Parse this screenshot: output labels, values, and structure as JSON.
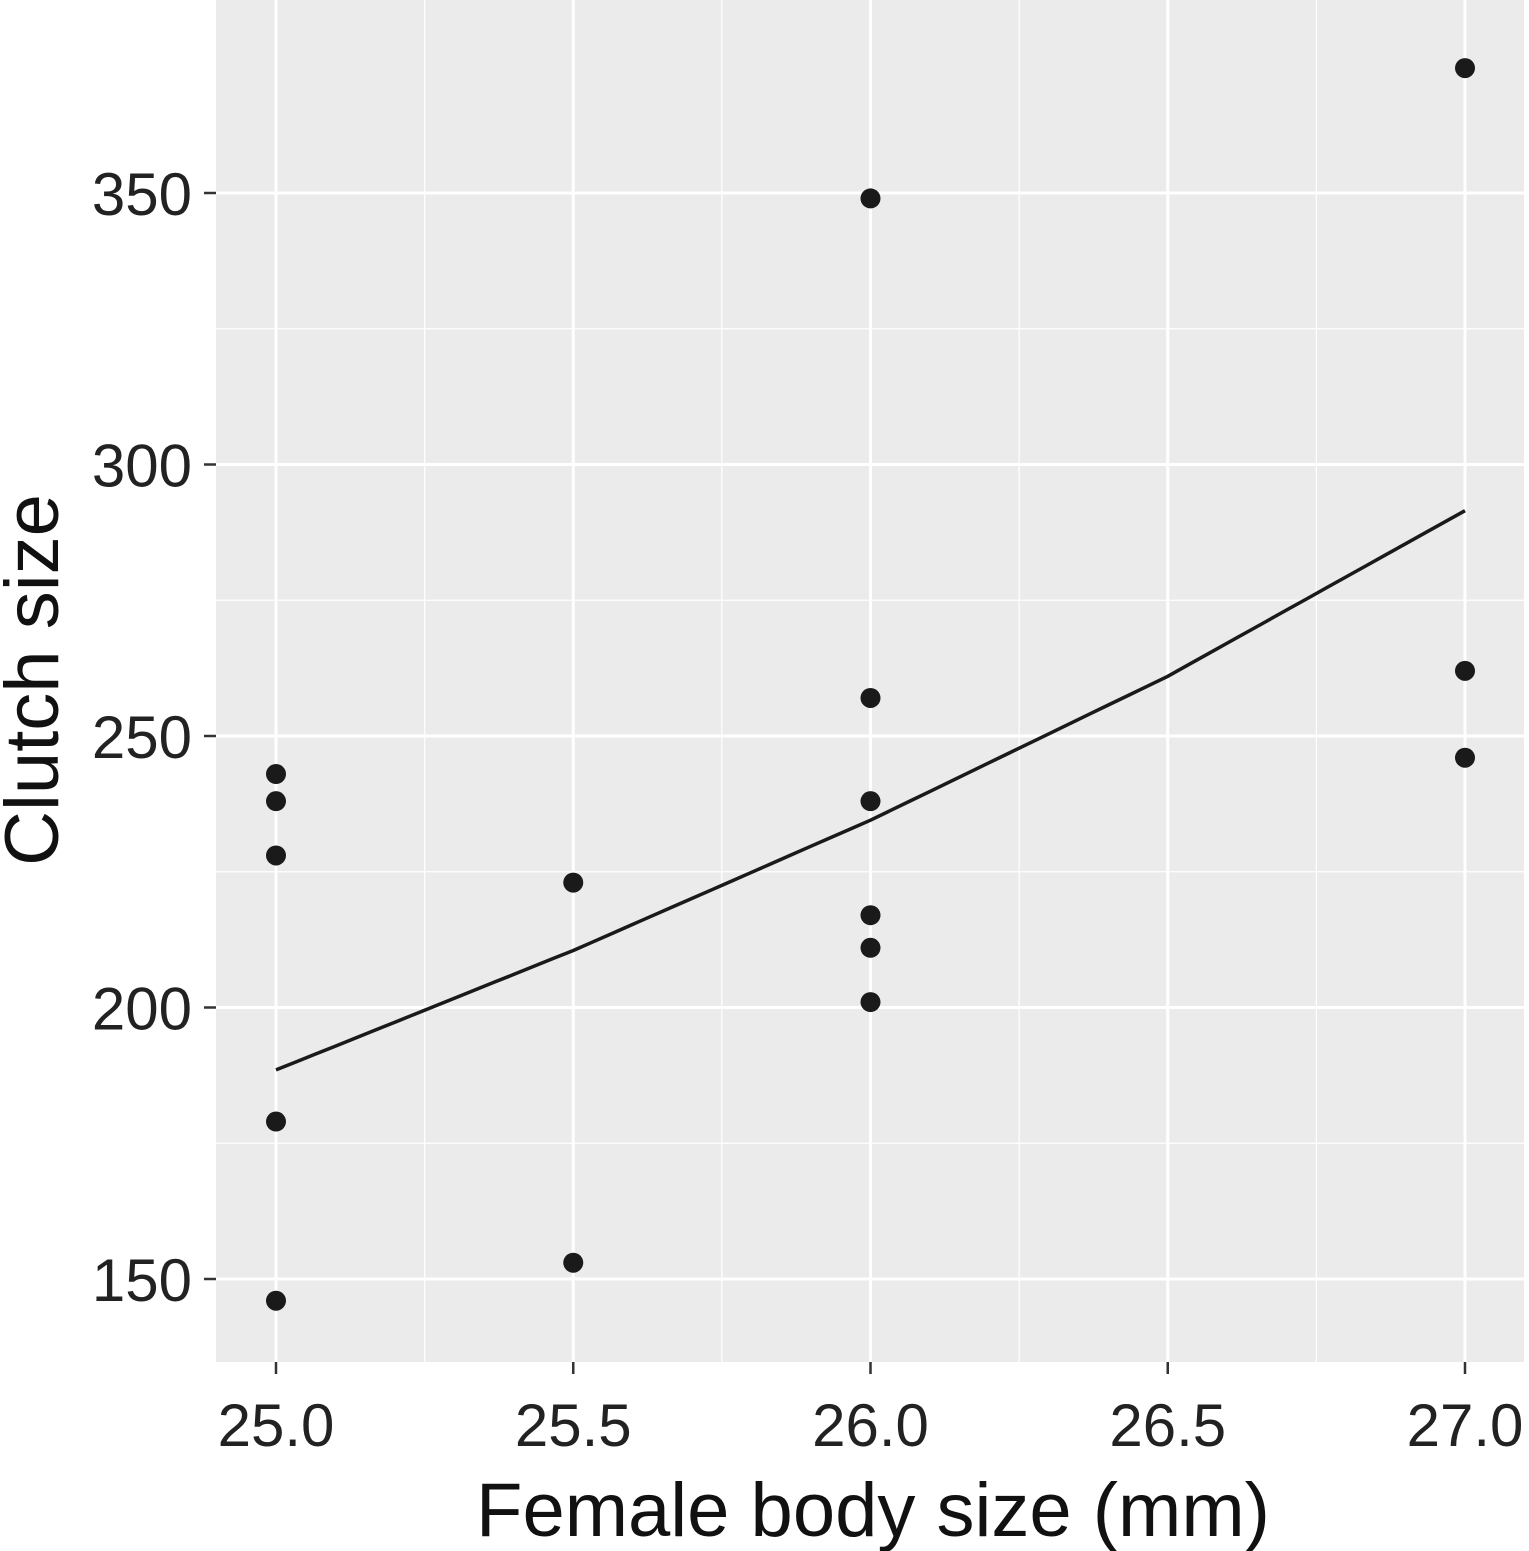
{
  "chart_data": {
    "type": "scatter",
    "xlabel": "Female body size (mm)",
    "ylabel": "Clutch size",
    "xlim": [
      24.9,
      27.1
    ],
    "ylim": [
      135,
      385
    ],
    "x_ticks": [
      25.0,
      25.5,
      26.0,
      26.5,
      27.0
    ],
    "x_tick_labels": [
      "25.0",
      "25.5",
      "26.0",
      "26.5",
      "27.0"
    ],
    "y_ticks": [
      150,
      200,
      250,
      300,
      350
    ],
    "y_tick_labels": [
      "150",
      "200",
      "250",
      "300",
      "350"
    ],
    "grid": true,
    "points": [
      {
        "x": 25.0,
        "y": 146
      },
      {
        "x": 25.0,
        "y": 179
      },
      {
        "x": 25.0,
        "y": 228
      },
      {
        "x": 25.0,
        "y": 238
      },
      {
        "x": 25.0,
        "y": 243
      },
      {
        "x": 25.5,
        "y": 153
      },
      {
        "x": 25.5,
        "y": 223
      },
      {
        "x": 26.0,
        "y": 201
      },
      {
        "x": 26.0,
        "y": 211
      },
      {
        "x": 26.0,
        "y": 217
      },
      {
        "x": 26.0,
        "y": 238
      },
      {
        "x": 26.0,
        "y": 257
      },
      {
        "x": 26.0,
        "y": 349
      },
      {
        "x": 27.0,
        "y": 246
      },
      {
        "x": 27.0,
        "y": 262
      },
      {
        "x": 27.0,
        "y": 373
      }
    ],
    "fit_line": {
      "x": [
        25.0,
        25.5,
        26.0,
        26.5,
        27.0
      ],
      "y": [
        188.5,
        210.5,
        234.5,
        261,
        291.5
      ]
    },
    "colors": {
      "panel_background": "#ebebeb",
      "grid": "#ffffff",
      "points": "#1a1a1a",
      "fit_line": "#1a1a1a"
    }
  }
}
